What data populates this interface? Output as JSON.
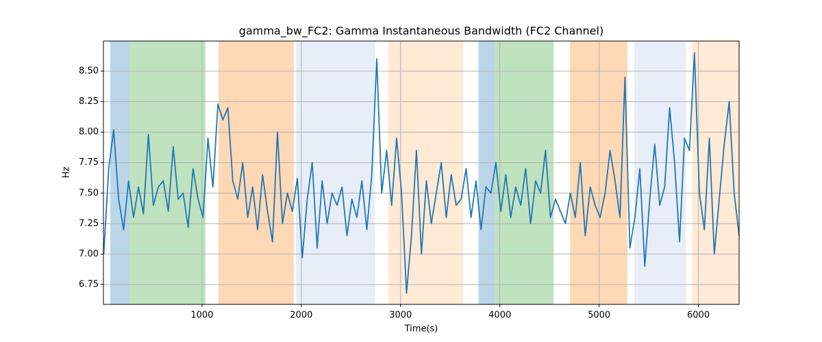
{
  "chart_data": {
    "type": "line",
    "title": "gamma_bw_FC2: Gamma Instantaneous Bandwidth (FC2 Channel)",
    "xlabel": "Time(s)",
    "ylabel": "Hz",
    "color": "#1f77b4",
    "x": [
      10,
      60,
      110,
      160,
      210,
      260,
      310,
      360,
      410,
      460,
      510,
      560,
      610,
      660,
      710,
      760,
      810,
      860,
      910,
      960,
      1010,
      1060,
      1110,
      1160,
      1210,
      1260,
      1310,
      1360,
      1410,
      1460,
      1510,
      1560,
      1610,
      1660,
      1710,
      1760,
      1810,
      1860,
      1910,
      1960,
      2010,
      2060,
      2110,
      2160,
      2210,
      2260,
      2310,
      2360,
      2410,
      2460,
      2510,
      2560,
      2610,
      2660,
      2710,
      2760,
      2810,
      2860,
      2910,
      2960,
      3010,
      3060,
      3110,
      3160,
      3210,
      3260,
      3310,
      3360,
      3410,
      3460,
      3510,
      3560,
      3610,
      3660,
      3710,
      3760,
      3810,
      3860,
      3910,
      3960,
      4010,
      4060,
      4110,
      4160,
      4210,
      4260,
      4310,
      4360,
      4410,
      4460,
      4510,
      4560,
      4610,
      4660,
      4710,
      4760,
      4810,
      4860,
      4910,
      4960,
      5010,
      5060,
      5110,
      5160,
      5210,
      5260,
      5310,
      5360,
      5410,
      5460,
      5510,
      5560,
      5610,
      5660,
      5710,
      5760,
      5810,
      5860,
      5910,
      5960,
      6010,
      6060,
      6110,
      6160,
      6210,
      6260,
      6310,
      6360,
      6410
    ],
    "values": [
      7.0,
      7.7,
      8.02,
      7.45,
      7.2,
      7.6,
      7.3,
      7.55,
      7.33,
      7.98,
      7.4,
      7.55,
      7.6,
      7.35,
      7.88,
      7.45,
      7.5,
      7.22,
      7.7,
      7.45,
      7.3,
      7.95,
      7.55,
      8.23,
      8.1,
      8.2,
      7.6,
      7.45,
      7.75,
      7.3,
      7.55,
      7.2,
      7.65,
      7.35,
      7.1,
      8.0,
      7.25,
      7.5,
      7.35,
      7.62,
      6.97,
      7.45,
      7.75,
      7.05,
      7.6,
      7.25,
      7.5,
      7.4,
      7.55,
      7.15,
      7.45,
      7.3,
      7.6,
      7.2,
      7.65,
      8.6,
      7.5,
      7.85,
      7.4,
      7.95,
      7.5,
      6.68,
      7.15,
      7.85,
      7.0,
      7.6,
      7.25,
      7.5,
      7.75,
      7.3,
      7.65,
      7.4,
      7.45,
      7.7,
      7.3,
      7.6,
      7.2,
      7.55,
      7.5,
      7.75,
      7.35,
      7.65,
      7.3,
      7.55,
      7.4,
      7.7,
      7.25,
      7.6,
      7.5,
      7.85,
      7.3,
      7.45,
      7.35,
      7.25,
      7.5,
      7.3,
      7.75,
      7.15,
      7.55,
      7.4,
      7.3,
      7.5,
      7.85,
      7.6,
      7.3,
      8.45,
      7.05,
      7.3,
      7.7,
      6.9,
      7.45,
      7.9,
      7.4,
      7.55,
      8.2,
      7.75,
      7.1,
      7.95,
      7.85,
      8.65,
      7.5,
      7.2,
      7.95,
      7.0,
      7.45,
      7.9,
      8.25,
      7.5,
      7.15
    ],
    "spans": [
      {
        "x": [
          76,
          271
        ],
        "color": "#1f77b4",
        "opacity": 0.3
      },
      {
        "x": [
          271,
          1035
        ],
        "color": "#2ca02c",
        "opacity": 0.3
      },
      {
        "x": [
          1167,
          1924
        ],
        "color": "#ff7f0e",
        "opacity": 0.3
      },
      {
        "x": [
          1945,
          2743
        ],
        "color": "#aec7e8",
        "opacity": 0.3
      },
      {
        "x": [
          2875,
          3632
        ],
        "color": "#ffbb78",
        "opacity": 0.3
      },
      {
        "x": [
          3785,
          3951
        ],
        "color": "#1f77b4",
        "opacity": 0.3
      },
      {
        "x": [
          3951,
          4542
        ],
        "color": "#2ca02c",
        "opacity": 0.3
      },
      {
        "x": [
          4708,
          5285
        ],
        "color": "#ff7f0e",
        "opacity": 0.3
      },
      {
        "x": [
          5354,
          5875
        ],
        "color": "#aec7e8",
        "opacity": 0.3
      },
      {
        "x": [
          5937,
          6410
        ],
        "color": "#ffbb78",
        "opacity": 0.3
      }
    ],
    "xlim": [
      7,
      6410
    ],
    "ylim": [
      6.587,
      8.747
    ],
    "xticks": [
      1000,
      2000,
      3000,
      4000,
      5000,
      6000
    ],
    "yticks": [
      6.75,
      {
        "value": 7,
        "label": "7.00"
      },
      7.25,
      {
        "value": 7.5,
        "label": "7.50"
      },
      7.75,
      {
        "value": 8,
        "label": "8.00"
      },
      8.25,
      {
        "value": 8.5,
        "label": "8.50"
      }
    ],
    "grid": true
  }
}
